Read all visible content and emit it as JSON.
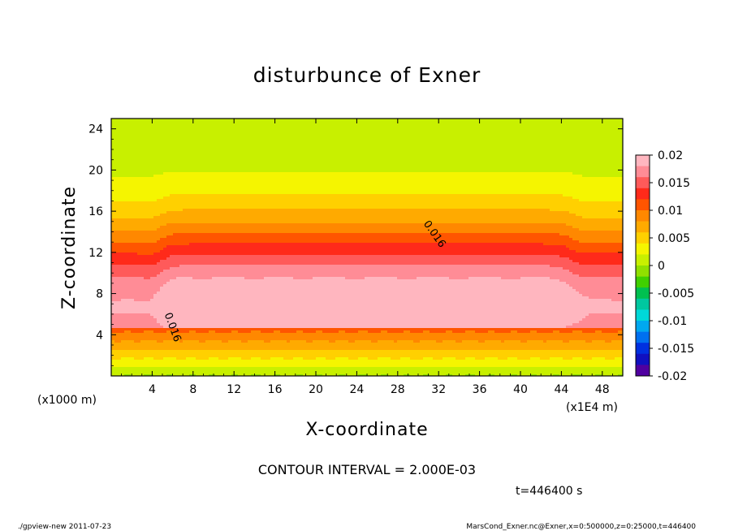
{
  "chart_data": {
    "type": "contour",
    "title": "disturbunce of Exner",
    "xlabel": "X-coordinate",
    "ylabel": "Z-coordinate",
    "x_unit_label": "(x1E4 m)",
    "z_unit_label": "(x1000 m)",
    "xlim": [
      0,
      50
    ],
    "ylim": [
      0,
      25
    ],
    "x_ticks": [
      4,
      8,
      12,
      16,
      20,
      24,
      28,
      32,
      36,
      40,
      44,
      48
    ],
    "y_ticks": [
      4,
      8,
      12,
      16,
      20,
      24
    ],
    "contour_interval_text": "CONTOUR INTERVAL = 2.000E-03",
    "time_text": "t=446400 s",
    "contour_labels": [
      {
        "text": "0.016",
        "x": 30.5,
        "z": 14.8,
        "angle": 55
      },
      {
        "text": "0.016",
        "x": 5.2,
        "z": 6.0,
        "angle": 70
      }
    ],
    "colorbar": {
      "ticks": [
        "0.02",
        "0.015",
        "0.01",
        "0.005",
        "0",
        "-0.005",
        "-0.01",
        "-0.015",
        "-0.02"
      ],
      "colors": [
        "#ffb6bf",
        "#ff8c96",
        "#ff5a5a",
        "#ff2a1a",
        "#ff5500",
        "#ff8800",
        "#ffaa00",
        "#ffd000",
        "#f5f500",
        "#c8f000",
        "#90e000",
        "#40d000",
        "#00c050",
        "#00c8a0",
        "#00d8d8",
        "#00a8f0",
        "#0070f0",
        "#0030e0",
        "#1010c0",
        "#5000a0"
      ]
    },
    "footer_left": "./gpview-new   2011-07-23",
    "footer_right": "MarsCond_Exner.nc@Exner,x=0:500000,z=0:25000,t=446400"
  }
}
